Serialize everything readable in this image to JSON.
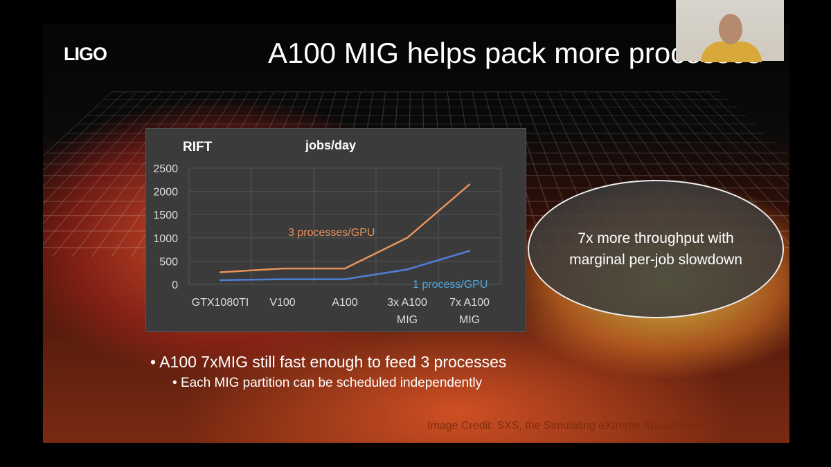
{
  "slide": {
    "logo": "LIGO",
    "title": "A100 MIG helps pack more processes",
    "callout": "7x more throughput with marginal per-job slowdown",
    "bullets": [
      "A100 7xMIG still fast enough to feed 3 processes",
      "Each MIG partition can be scheduled independently"
    ],
    "credit": "Image Credit: SXS, the Simulating eXtreme Spacetimes"
  },
  "chart_data": {
    "type": "line",
    "title": "RIFT",
    "subtitle": "jobs/day",
    "categories": [
      "GTX1080TI",
      "V100",
      "A100",
      "3x A100 MIG",
      "7x A100 MIG"
    ],
    "ylim": [
      0,
      2500
    ],
    "yticks": [
      0,
      500,
      1000,
      1500,
      2000,
      2500
    ],
    "grid": true,
    "series": [
      {
        "name": "3 processes/GPU",
        "color": "#e8935a",
        "values": [
          260,
          340,
          340,
          1000,
          2150
        ]
      },
      {
        "name": "1 process/GPU",
        "color": "#4f7fd8",
        "label_color": "#4fa8e0",
        "values": [
          90,
          110,
          110,
          320,
          720
        ]
      }
    ]
  },
  "webcam": {
    "participant": "presenter-video"
  }
}
